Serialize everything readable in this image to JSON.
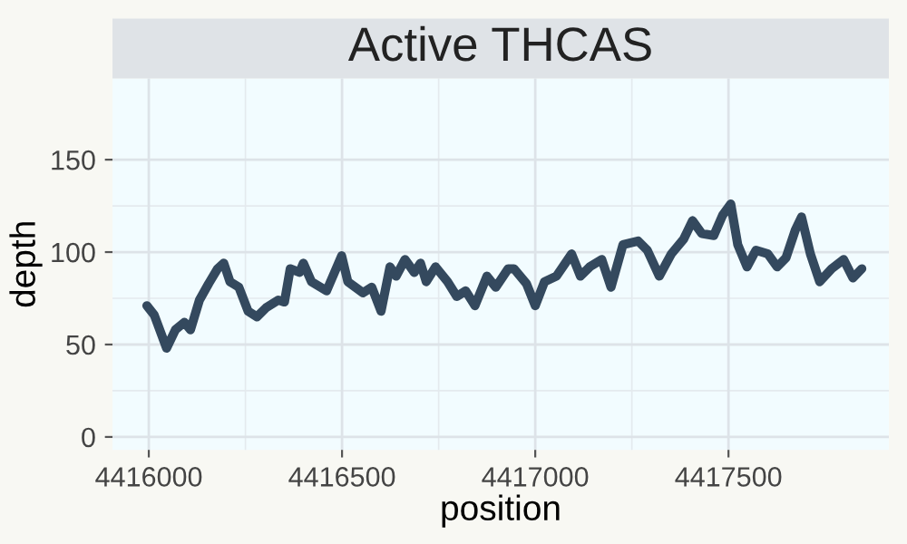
{
  "chart_data": {
    "type": "line",
    "title": "Active THCAS",
    "xlabel": "position",
    "ylabel": "depth",
    "x": [
      4415995,
      4416014,
      4416046,
      4416069,
      4416092,
      4416108,
      4416131,
      4416155,
      4416178,
      4416194,
      4416210,
      4416233,
      4416257,
      4416280,
      4416304,
      4416335,
      4416351,
      4416366,
      4416390,
      4416400,
      4416421,
      4416460,
      4416499,
      4416515,
      4416554,
      4416577,
      4416601,
      4416624,
      4416640,
      4416663,
      4416687,
      4416703,
      4416718,
      4416742,
      4416773,
      4416797,
      4416820,
      4416844,
      4416875,
      4416898,
      4416930,
      4416945,
      4416977,
      4417000,
      4417024,
      4417055,
      4417094,
      4417117,
      4417141,
      4417172,
      4417196,
      4417227,
      4417266,
      4417290,
      4417321,
      4417352,
      4417384,
      4417407,
      4417431,
      4417462,
      4417485,
      4417506,
      4417524,
      4417548,
      4417571,
      4417602,
      4417626,
      4417649,
      4417673,
      4417689,
      4417712,
      4417736,
      4417767,
      4417798,
      4417822,
      4417845
    ],
    "series": [
      {
        "color": "#34495e",
        "values": [
          71,
          66,
          48,
          58,
          62,
          58,
          74,
          83,
          91,
          94,
          84,
          81,
          68,
          65,
          70,
          74,
          73,
          91,
          89,
          94,
          84,
          79,
          98,
          84,
          78,
          81,
          68,
          92,
          87,
          96,
          89,
          94,
          84,
          92,
          84,
          76,
          79,
          71,
          87,
          81,
          91,
          91,
          83,
          71,
          84,
          87,
          99,
          87,
          92,
          96,
          81,
          104,
          106,
          101,
          87,
          99,
          107,
          117,
          110,
          109,
          120,
          126,
          104,
          92,
          101,
          99,
          92,
          97,
          112,
          119,
          99,
          84,
          91,
          96,
          86,
          91
        ]
      }
    ],
    "xlim": [
      4415906,
      4417915
    ],
    "ylim": [
      -7,
      194
    ],
    "xticks": [
      4416000,
      4416500,
      4417000,
      4417500
    ],
    "yticks": [
      0,
      50,
      100,
      150
    ],
    "grid": true
  }
}
